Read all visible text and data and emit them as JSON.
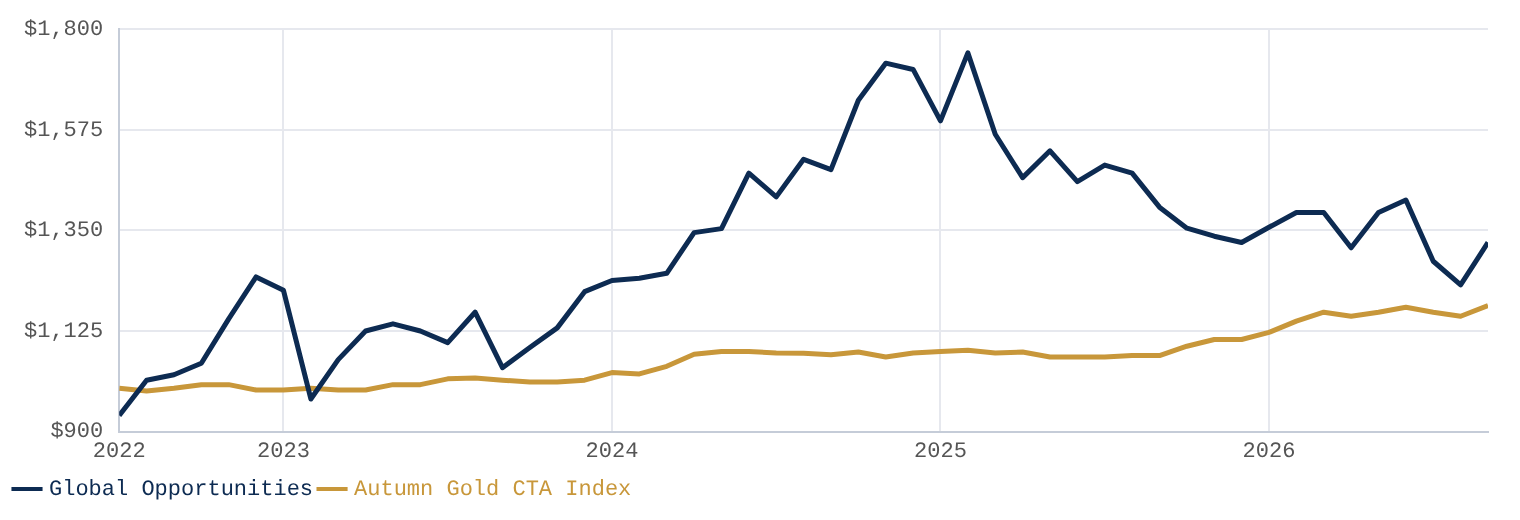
{
  "chart_data": {
    "type": "line",
    "x": [
      "2022-07",
      "2022-08",
      "2022-09",
      "2022-10",
      "2022-11",
      "2022-12",
      "2023-01",
      "2023-02",
      "2023-03",
      "2023-04",
      "2023-05",
      "2023-06",
      "2023-07",
      "2023-08",
      "2023-09",
      "2023-10",
      "2023-11",
      "2023-12",
      "2024-01",
      "2024-02",
      "2024-03",
      "2024-04",
      "2024-05",
      "2024-06",
      "2024-07",
      "2024-08",
      "2024-09",
      "2024-10",
      "2024-11",
      "2024-12",
      "2025-01",
      "2025-02",
      "2025-03",
      "2025-04",
      "2025-05",
      "2025-06",
      "2025-07",
      "2025-08",
      "2025-09",
      "2025-10",
      "2025-11",
      "2025-12",
      "2026-01",
      "2026-02",
      "2026-03",
      "2026-04",
      "2026-05",
      "2026-06",
      "2026-07",
      "2026-08",
      "2026-09"
    ],
    "series": [
      {
        "name": "Global Opportunities",
        "color": "#0d2b52",
        "values": [
          936,
          1015,
          1027,
          1053,
          1152,
          1246,
          1216,
          973,
          1061,
          1125,
          1141,
          1125,
          1099,
          1167,
          1043,
          1088,
          1132,
          1213,
          1238,
          1243,
          1254,
          1345,
          1354,
          1478,
          1425,
          1509,
          1486,
          1641,
          1724,
          1710,
          1595,
          1747,
          1565,
          1468,
          1528,
          1459,
          1496,
          1478,
          1402,
          1355,
          1337,
          1323,
          1357,
          1390,
          1390,
          1311,
          1390,
          1418,
          1281,
          1228,
          1323
        ]
      },
      {
        "name": "Autumn Gold CTA Index",
        "color": "#c8973a",
        "values": [
          997,
          991,
          997,
          1005,
          1005,
          993,
          993,
          997,
          993,
          993,
          1005,
          1005,
          1018,
          1020,
          1015,
          1011,
          1011,
          1015,
          1032,
          1029,
          1046,
          1073,
          1079,
          1079,
          1076,
          1075,
          1072,
          1078,
          1067,
          1076,
          1079,
          1082,
          1076,
          1078,
          1067,
          1067,
          1067,
          1070,
          1070,
          1091,
          1106,
          1106,
          1122,
          1147,
          1167,
          1158,
          1167,
          1178,
          1167,
          1158,
          1182
        ]
      }
    ],
    "xlim": [
      "2022-07",
      "2026-09"
    ],
    "xticks": [
      {
        "value": "2022-07",
        "label": "2022"
      },
      {
        "value": "2023-01",
        "label": "2023"
      },
      {
        "value": "2024-01",
        "label": "2024"
      },
      {
        "value": "2025-01",
        "label": "2025"
      },
      {
        "value": "2026-01",
        "label": "2026"
      }
    ],
    "ylim": [
      900,
      1800
    ],
    "yticks": [
      {
        "value": 900,
        "label": "$900"
      },
      {
        "value": 1125,
        "label": "$1,125"
      },
      {
        "value": 1350,
        "label": "$1,350"
      },
      {
        "value": 1575,
        "label": "$1,575"
      },
      {
        "value": 1800,
        "label": "$1,800"
      }
    ],
    "grid": true,
    "legend": "bottom",
    "marker": "none",
    "line_style": "solid"
  }
}
